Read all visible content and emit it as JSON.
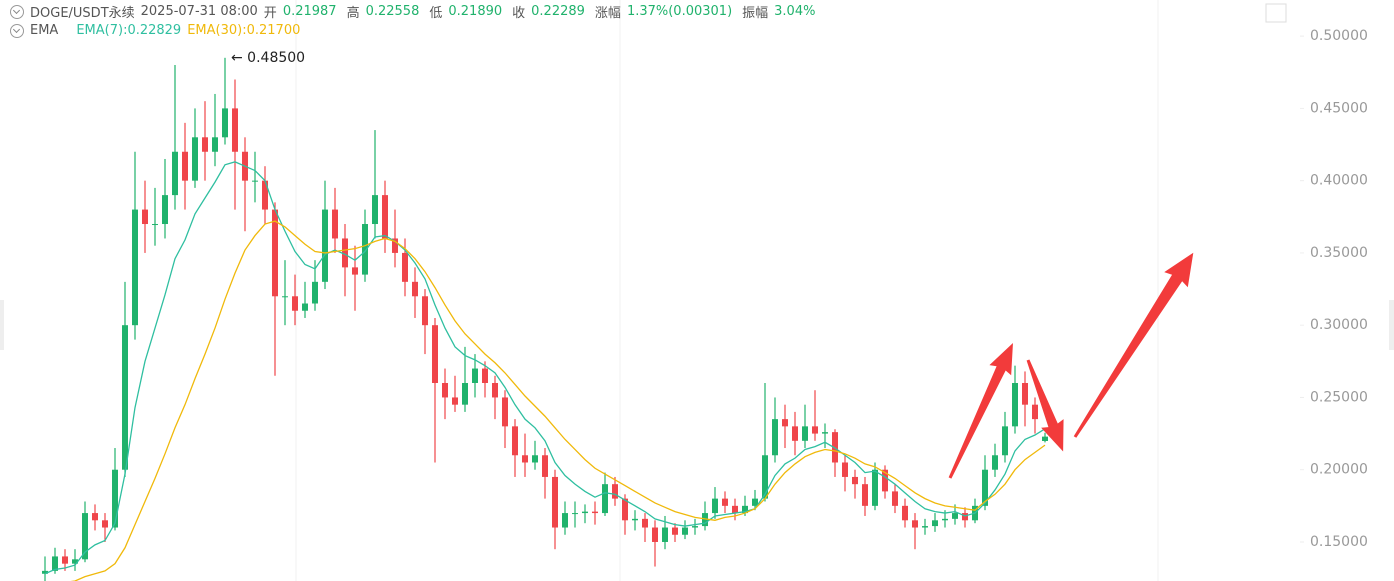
{
  "header": {
    "symbol": "DOGE/USDT永续",
    "datetime": "2025-07-31 08:00",
    "items": [
      {
        "label": "开",
        "value": "0.21987"
      },
      {
        "label": "高",
        "value": "0.22558"
      },
      {
        "label": "低",
        "value": "0.21890"
      },
      {
        "label": "收",
        "value": "0.22289"
      },
      {
        "label": "涨幅",
        "value": "1.37%(0.00301)"
      },
      {
        "label": "振幅",
        "value": "3.04%"
      }
    ]
  },
  "chart_data": {
    "type": "candlestick",
    "indicator": "EMA",
    "up_color": "#20b26c",
    "down_color": "#ef454a",
    "ylim": [
      0.123,
      0.525
    ],
    "yticks": [
      {
        "value": 0.15,
        "label": "0.15000"
      },
      {
        "value": 0.2,
        "label": "0.20000"
      },
      {
        "value": 0.25,
        "label": "0.25000"
      },
      {
        "value": 0.3,
        "label": "0.30000"
      },
      {
        "value": 0.35,
        "label": "0.35000"
      },
      {
        "value": 0.4,
        "label": "0.40000"
      },
      {
        "value": 0.45,
        "label": "0.45000"
      },
      {
        "value": 0.5,
        "label": "0.50000"
      }
    ],
    "annotation": {
      "text": "← 0.48500",
      "value": 0.485
    },
    "ohlc": [
      [
        0.128,
        0.14,
        0.122,
        0.13
      ],
      [
        0.13,
        0.146,
        0.128,
        0.14
      ],
      [
        0.14,
        0.145,
        0.13,
        0.135
      ],
      [
        0.135,
        0.145,
        0.13,
        0.138
      ],
      [
        0.138,
        0.178,
        0.136,
        0.17
      ],
      [
        0.17,
        0.176,
        0.158,
        0.165
      ],
      [
        0.165,
        0.17,
        0.15,
        0.16
      ],
      [
        0.16,
        0.215,
        0.158,
        0.2
      ],
      [
        0.2,
        0.33,
        0.195,
        0.3
      ],
      [
        0.3,
        0.42,
        0.29,
        0.38
      ],
      [
        0.38,
        0.4,
        0.35,
        0.37
      ],
      [
        0.37,
        0.395,
        0.355,
        0.37
      ],
      [
        0.37,
        0.415,
        0.36,
        0.39
      ],
      [
        0.39,
        0.48,
        0.38,
        0.42
      ],
      [
        0.42,
        0.44,
        0.38,
        0.4
      ],
      [
        0.4,
        0.45,
        0.395,
        0.43
      ],
      [
        0.43,
        0.455,
        0.4,
        0.42
      ],
      [
        0.42,
        0.46,
        0.41,
        0.43
      ],
      [
        0.43,
        0.485,
        0.425,
        0.45
      ],
      [
        0.45,
        0.47,
        0.38,
        0.42
      ],
      [
        0.42,
        0.43,
        0.365,
        0.4
      ],
      [
        0.4,
        0.42,
        0.385,
        0.4
      ],
      [
        0.4,
        0.41,
        0.37,
        0.38
      ],
      [
        0.38,
        0.385,
        0.265,
        0.32
      ],
      [
        0.32,
        0.345,
        0.3,
        0.32
      ],
      [
        0.32,
        0.335,
        0.3,
        0.31
      ],
      [
        0.31,
        0.33,
        0.305,
        0.315
      ],
      [
        0.315,
        0.345,
        0.31,
        0.33
      ],
      [
        0.33,
        0.4,
        0.325,
        0.38
      ],
      [
        0.38,
        0.395,
        0.35,
        0.36
      ],
      [
        0.36,
        0.37,
        0.32,
        0.34
      ],
      [
        0.34,
        0.355,
        0.31,
        0.335
      ],
      [
        0.335,
        0.38,
        0.33,
        0.37
      ],
      [
        0.37,
        0.435,
        0.36,
        0.39
      ],
      [
        0.39,
        0.4,
        0.35,
        0.36
      ],
      [
        0.36,
        0.38,
        0.34,
        0.35
      ],
      [
        0.35,
        0.36,
        0.32,
        0.33
      ],
      [
        0.33,
        0.34,
        0.305,
        0.32
      ],
      [
        0.32,
        0.325,
        0.28,
        0.3
      ],
      [
        0.3,
        0.305,
        0.205,
        0.26
      ],
      [
        0.26,
        0.27,
        0.235,
        0.25
      ],
      [
        0.25,
        0.265,
        0.24,
        0.245
      ],
      [
        0.245,
        0.285,
        0.24,
        0.26
      ],
      [
        0.26,
        0.28,
        0.25,
        0.27
      ],
      [
        0.27,
        0.275,
        0.25,
        0.26
      ],
      [
        0.26,
        0.265,
        0.235,
        0.25
      ],
      [
        0.25,
        0.255,
        0.215,
        0.23
      ],
      [
        0.23,
        0.235,
        0.195,
        0.21
      ],
      [
        0.21,
        0.225,
        0.195,
        0.205
      ],
      [
        0.205,
        0.22,
        0.2,
        0.21
      ],
      [
        0.21,
        0.215,
        0.18,
        0.195
      ],
      [
        0.195,
        0.2,
        0.145,
        0.16
      ],
      [
        0.16,
        0.178,
        0.155,
        0.17
      ],
      [
        0.17,
        0.178,
        0.16,
        0.17
      ],
      [
        0.17,
        0.176,
        0.163,
        0.171
      ],
      [
        0.171,
        0.178,
        0.162,
        0.17
      ],
      [
        0.17,
        0.198,
        0.168,
        0.19
      ],
      [
        0.19,
        0.195,
        0.175,
        0.18
      ],
      [
        0.18,
        0.183,
        0.155,
        0.165
      ],
      [
        0.165,
        0.172,
        0.158,
        0.166
      ],
      [
        0.166,
        0.17,
        0.15,
        0.16
      ],
      [
        0.16,
        0.165,
        0.133,
        0.15
      ],
      [
        0.15,
        0.168,
        0.145,
        0.16
      ],
      [
        0.16,
        0.163,
        0.15,
        0.155
      ],
      [
        0.155,
        0.165,
        0.152,
        0.16
      ],
      [
        0.16,
        0.166,
        0.155,
        0.161
      ],
      [
        0.161,
        0.178,
        0.158,
        0.17
      ],
      [
        0.17,
        0.188,
        0.166,
        0.18
      ],
      [
        0.18,
        0.185,
        0.17,
        0.175
      ],
      [
        0.175,
        0.18,
        0.165,
        0.17
      ],
      [
        0.17,
        0.182,
        0.168,
        0.175
      ],
      [
        0.175,
        0.186,
        0.172,
        0.18
      ],
      [
        0.18,
        0.26,
        0.178,
        0.21
      ],
      [
        0.21,
        0.25,
        0.205,
        0.235
      ],
      [
        0.235,
        0.245,
        0.215,
        0.23
      ],
      [
        0.23,
        0.24,
        0.21,
        0.22
      ],
      [
        0.22,
        0.245,
        0.215,
        0.23
      ],
      [
        0.23,
        0.255,
        0.22,
        0.225
      ],
      [
        0.225,
        0.232,
        0.215,
        0.226
      ],
      [
        0.226,
        0.228,
        0.195,
        0.205
      ],
      [
        0.205,
        0.21,
        0.185,
        0.195
      ],
      [
        0.195,
        0.2,
        0.18,
        0.19
      ],
      [
        0.19,
        0.195,
        0.168,
        0.175
      ],
      [
        0.175,
        0.205,
        0.172,
        0.2
      ],
      [
        0.2,
        0.203,
        0.18,
        0.185
      ],
      [
        0.185,
        0.19,
        0.17,
        0.175
      ],
      [
        0.175,
        0.18,
        0.16,
        0.165
      ],
      [
        0.165,
        0.17,
        0.145,
        0.16
      ],
      [
        0.16,
        0.166,
        0.155,
        0.161
      ],
      [
        0.161,
        0.17,
        0.157,
        0.165
      ],
      [
        0.165,
        0.172,
        0.16,
        0.166
      ],
      [
        0.166,
        0.176,
        0.162,
        0.17
      ],
      [
        0.17,
        0.174,
        0.16,
        0.165
      ],
      [
        0.165,
        0.18,
        0.163,
        0.175
      ],
      [
        0.175,
        0.21,
        0.172,
        0.2
      ],
      [
        0.2,
        0.218,
        0.195,
        0.21
      ],
      [
        0.21,
        0.24,
        0.205,
        0.23
      ],
      [
        0.23,
        0.272,
        0.225,
        0.26
      ],
      [
        0.26,
        0.268,
        0.23,
        0.245
      ],
      [
        0.245,
        0.25,
        0.225,
        0.235
      ],
      [
        0.21987,
        0.22558,
        0.2189,
        0.22289
      ]
    ],
    "series": [
      {
        "name": "EMA(7):0.22829",
        "color": "#2fbfa0",
        "values": [
          0.128,
          0.131,
          0.132,
          0.134,
          0.143,
          0.148,
          0.151,
          0.163,
          0.197,
          0.243,
          0.275,
          0.298,
          0.321,
          0.346,
          0.359,
          0.377,
          0.388,
          0.399,
          0.411,
          0.413,
          0.41,
          0.407,
          0.4,
          0.38,
          0.365,
          0.351,
          0.342,
          0.339,
          0.349,
          0.352,
          0.349,
          0.345,
          0.351,
          0.361,
          0.362,
          0.358,
          0.352,
          0.343,
          0.332,
          0.314,
          0.298,
          0.285,
          0.279,
          0.276,
          0.272,
          0.267,
          0.257,
          0.245,
          0.235,
          0.229,
          0.22,
          0.205,
          0.196,
          0.19,
          0.185,
          0.181,
          0.184,
          0.183,
          0.179,
          0.175,
          0.171,
          0.166,
          0.164,
          0.162,
          0.161,
          0.162,
          0.163,
          0.168,
          0.169,
          0.17,
          0.171,
          0.173,
          0.183,
          0.196,
          0.204,
          0.208,
          0.214,
          0.216,
          0.219,
          0.215,
          0.21,
          0.205,
          0.198,
          0.199,
          0.195,
          0.19,
          0.184,
          0.178,
          0.173,
          0.171,
          0.17,
          0.171,
          0.168,
          0.17,
          0.177,
          0.186,
          0.197,
          0.213,
          0.221,
          0.224,
          0.22829
        ]
      },
      {
        "name": "EMA(30):0.21700",
        "color": "#f0b90b",
        "values": [
          0.12,
          0.121,
          0.122,
          0.123,
          0.126,
          0.128,
          0.13,
          0.135,
          0.146,
          0.162,
          0.178,
          0.194,
          0.211,
          0.229,
          0.245,
          0.263,
          0.28,
          0.298,
          0.318,
          0.336,
          0.352,
          0.362,
          0.37,
          0.372,
          0.368,
          0.362,
          0.356,
          0.351,
          0.35,
          0.351,
          0.352,
          0.353,
          0.355,
          0.358,
          0.36,
          0.358,
          0.353,
          0.346,
          0.337,
          0.326,
          0.314,
          0.303,
          0.294,
          0.287,
          0.28,
          0.274,
          0.267,
          0.259,
          0.251,
          0.244,
          0.237,
          0.229,
          0.221,
          0.214,
          0.207,
          0.201,
          0.197,
          0.193,
          0.189,
          0.185,
          0.181,
          0.177,
          0.174,
          0.171,
          0.169,
          0.167,
          0.166,
          0.165,
          0.167,
          0.168,
          0.17,
          0.173,
          0.18,
          0.19,
          0.198,
          0.204,
          0.209,
          0.212,
          0.214,
          0.213,
          0.211,
          0.208,
          0.204,
          0.202,
          0.198,
          0.194,
          0.189,
          0.184,
          0.18,
          0.177,
          0.175,
          0.174,
          0.173,
          0.172,
          0.178,
          0.183,
          0.19,
          0.2,
          0.207,
          0.212,
          0.217
        ]
      }
    ]
  }
}
